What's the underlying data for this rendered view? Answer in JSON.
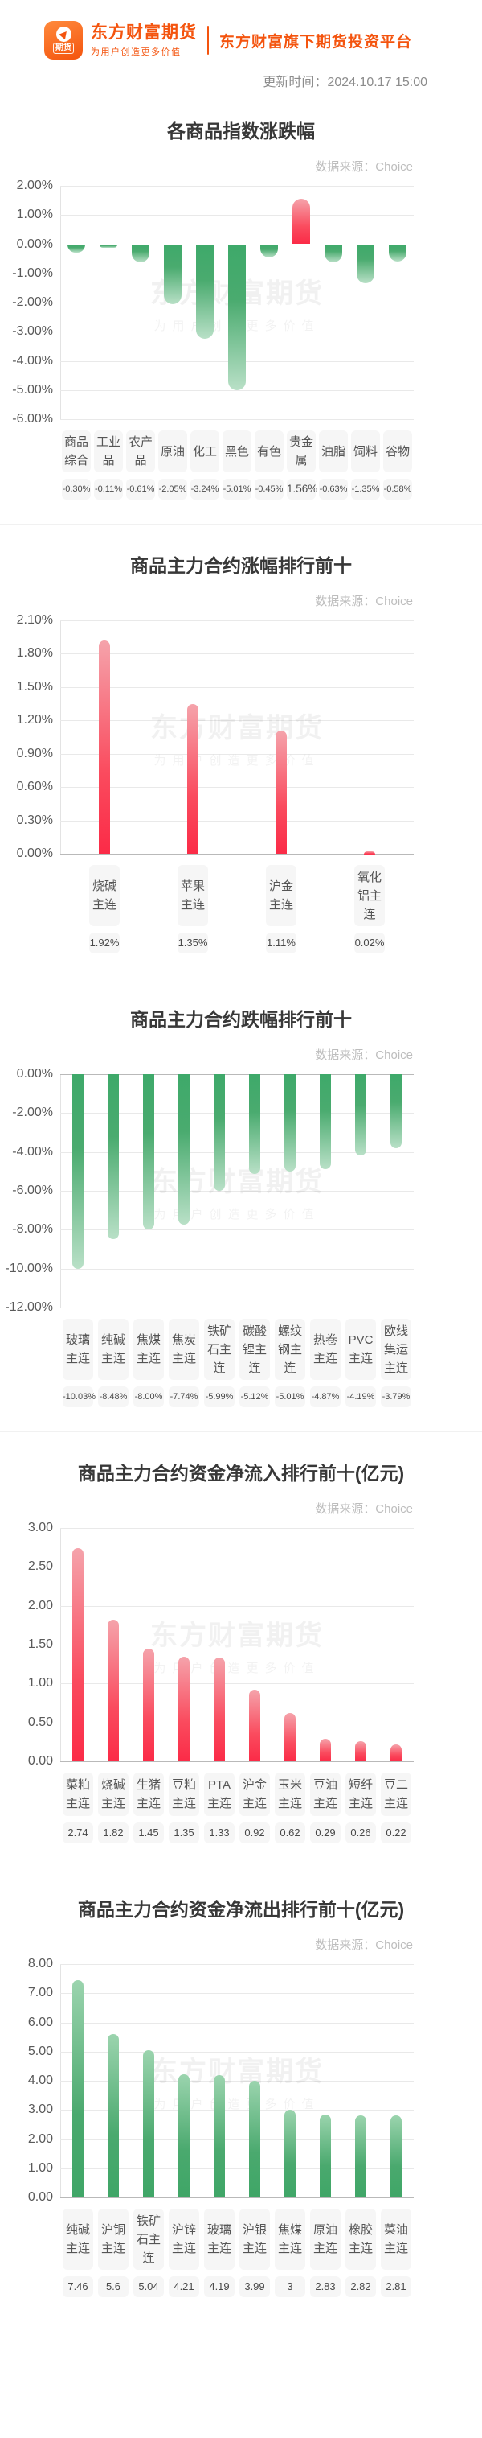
{
  "header": {
    "app_badge": "期货",
    "brand_name": "东方财富期货",
    "brand_slogan": "为用户创造更多价值",
    "tagline": "东方财富旗下期货投资平台",
    "update_time_label": "更新时间：",
    "update_time": "2024.10.17 15:00"
  },
  "watermark": {
    "line1": "东方财富期货",
    "line2": "为用户创造更多价值"
  },
  "source_label": "数据来源：Choice",
  "colors": {
    "accent_orange": "#f4540e",
    "up_red": "#fb2b47",
    "down_green": "#3ea96a",
    "grid": "#e9e9e9",
    "zero_line": "#b9b9b9"
  },
  "chart_data": [
    {
      "type": "bar",
      "title": "各商品指数涨跌幅",
      "source": "数据来源：Choice",
      "categories": [
        "商品综合",
        "工业品",
        "农产品",
        "原油",
        "化工",
        "黑色",
        "有色",
        "贵金属",
        "油脂",
        "饲料",
        "谷物"
      ],
      "values": [
        -0.3,
        -0.11,
        -0.61,
        -2.05,
        -3.24,
        -5.01,
        -0.45,
        1.56,
        -0.63,
        -1.35,
        -0.58
      ],
      "value_labels": [
        "-0.30%",
        "-0.11%",
        "-0.61%",
        "-2.05%",
        "-3.24%",
        "-5.01%",
        "-0.45%",
        "1.56%",
        "-0.63%",
        "-1.35%",
        "-0.58%"
      ],
      "ylim": [
        -6,
        2
      ],
      "yticks": [
        2,
        1,
        0,
        -1,
        -2,
        -3,
        -4,
        -5,
        -6
      ],
      "ytick_labels": [
        "2.00%",
        "1.00%",
        "0.00%",
        "-1.00%",
        "-2.00%",
        "-3.00%",
        "-4.00%",
        "-5.00%",
        "-6.00%"
      ],
      "palette": "by-sign",
      "grid": true,
      "legend": "none"
    },
    {
      "type": "bar",
      "title": "商品主力合约涨幅排行前十",
      "source": "数据来源：Choice",
      "categories": [
        "烧碱主连",
        "苹果主连",
        "沪金主连",
        "氧化铝主连"
      ],
      "values": [
        1.92,
        1.35,
        1.11,
        0.02
      ],
      "value_labels": [
        "1.92%",
        "1.35%",
        "1.11%",
        "0.02%"
      ],
      "ylim": [
        0,
        2.1
      ],
      "yticks": [
        2.1,
        1.8,
        1.5,
        1.2,
        0.9,
        0.6,
        0.3,
        0
      ],
      "ytick_labels": [
        "2.10%",
        "1.80%",
        "1.50%",
        "1.20%",
        "0.90%",
        "0.60%",
        "0.30%",
        "0.00%"
      ],
      "palette": "up-red",
      "grid": true,
      "legend": "none"
    },
    {
      "type": "bar",
      "title": "商品主力合约跌幅排行前十",
      "source": "数据来源：Choice",
      "categories": [
        "玻璃主连",
        "纯碱主连",
        "焦煤主连",
        "焦炭主连",
        "铁矿石主连",
        "碳酸锂主连",
        "螺纹钢主连",
        "热卷主连",
        "PVC主连",
        "欧线集运主连"
      ],
      "values": [
        -10.03,
        -8.48,
        -8.0,
        -7.74,
        -5.99,
        -5.12,
        -5.01,
        -4.87,
        -4.19,
        -3.79
      ],
      "value_labels": [
        "-10.03%",
        "-8.48%",
        "-8.00%",
        "-7.74%",
        "-5.99%",
        "-5.12%",
        "-5.01%",
        "-4.87%",
        "-4.19%",
        "-3.79%"
      ],
      "ylim": [
        -12,
        0
      ],
      "yticks": [
        0,
        -2,
        -4,
        -6,
        -8,
        -10,
        -12
      ],
      "ytick_labels": [
        "0.00%",
        "-2.00%",
        "-4.00%",
        "-6.00%",
        "-8.00%",
        "-10.00%",
        "-12.00%"
      ],
      "palette": "down-green",
      "grid": true,
      "legend": "none"
    },
    {
      "type": "bar",
      "title": "商品主力合约资金净流入排行前十(亿元)",
      "source": "数据来源：Choice",
      "categories": [
        "菜粕主连",
        "烧碱主连",
        "生猪主连",
        "豆粕主连",
        "PTA主连",
        "沪金主连",
        "玉米主连",
        "豆油主连",
        "短纤主连",
        "豆二主连"
      ],
      "values": [
        2.74,
        1.82,
        1.45,
        1.35,
        1.33,
        0.92,
        0.62,
        0.29,
        0.26,
        0.22
      ],
      "value_labels": [
        "2.74",
        "1.82",
        "1.45",
        "1.35",
        "1.33",
        "0.92",
        "0.62",
        "0.29",
        "0.26",
        "0.22"
      ],
      "ylim": [
        0,
        3
      ],
      "yticks": [
        3,
        2.5,
        2,
        1.5,
        1,
        0.5,
        0
      ],
      "ytick_labels": [
        "3.00",
        "2.50",
        "2.00",
        "1.50",
        "1.00",
        "0.50",
        "0.00"
      ],
      "palette": "up-red",
      "grid": true,
      "legend": "none"
    },
    {
      "type": "bar",
      "title": "商品主力合约资金净流出排行前十(亿元)",
      "source": "数据来源：Choice",
      "categories": [
        "纯碱主连",
        "沪铜主连",
        "铁矿石主连",
        "沪锌主连",
        "玻璃主连",
        "沪银主连",
        "焦煤主连",
        "原油主连",
        "橡胶主连",
        "菜油主连"
      ],
      "values": [
        7.46,
        5.6,
        5.04,
        4.21,
        4.19,
        3.99,
        3,
        2.83,
        2.82,
        2.81
      ],
      "value_labels": [
        "7.46",
        "5.6",
        "5.04",
        "4.21",
        "4.19",
        "3.99",
        "3",
        "2.83",
        "2.82",
        "2.81"
      ],
      "ylim": [
        0,
        8
      ],
      "yticks": [
        8,
        7,
        6,
        5,
        4,
        3,
        2,
        1,
        0
      ],
      "ytick_labels": [
        "8.00",
        "7.00",
        "6.00",
        "5.00",
        "4.00",
        "3.00",
        "2.00",
        "1.00",
        "0.00"
      ],
      "palette": "up-green",
      "grid": true,
      "legend": "none"
    }
  ]
}
